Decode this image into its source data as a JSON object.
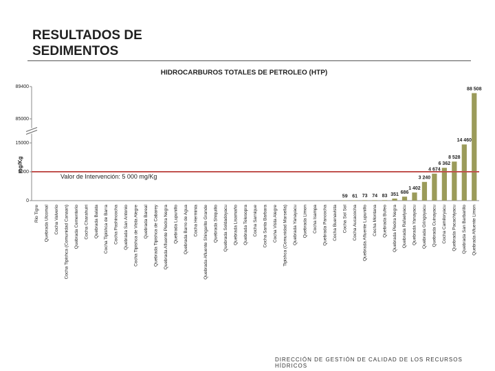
{
  "header": {
    "title_line_1": "RESULTADOS DE",
    "title_line_2": "SEDIMENTOS"
  },
  "footer": "DIRECCIÓN DE GESTIÓN DE CALIDAD DE LOS RECURSOS HÍDRICOS",
  "chart_data": {
    "type": "bar",
    "title": "HIDROCARBUROS TOTALES DE PETROLEO (HTP)",
    "y_label": "mg/Kg",
    "categories": [
      "Rio Tigre",
      "Quebrada Ulcomal",
      "Cocha Valverio",
      "Cocha Tipishca (Comunidad Canaan)",
      "Quebrada Cementerio",
      "Cocha Charahuiri",
      "Quebrada Balata",
      "Cocha Tipishca de Barra",
      "Cocha Pashincocha",
      "Quebrada San Antonio",
      "Cocha Tipishca de Vista Alegre",
      "Quebrada Bareal",
      "Quebrada Tipishca de Cabarey",
      "Quebrada Afluente Piedra Negra",
      "Quebrada Lupunillo",
      "Quebrada Barro de Agua",
      "Cocha Herminia",
      "Quebrada Afluente Shingarito Grande",
      "Quebrada Shiquilio",
      "Quebrada Soldadoyacu",
      "Quebrada Lisamaño",
      "Quebrada Telesopra",
      "Cocha Sarnique",
      "Cocha Santa Barbara",
      "Cocha Vista Alegre",
      "Tipishca (Comunidad Marsella)",
      "Quebrada Yanayacu",
      "Quebrada Limon",
      "Cocha Isampa",
      "Quebrada Pancocha",
      "Cocha Buenavista",
      "Cocha Sol Sol",
      "Cocha Aucacocha",
      "Quebrada Afluente Lupunillo",
      "Cocha Montana",
      "Quebrada Bufeo",
      "Quebrada Piedra Negra",
      "Quebrada Rafaelyacu",
      "Quebrada Yanayacu",
      "Quebrada Gringoyacu",
      "Quebrada Cuinayacu",
      "Cocha Camiloryacu",
      "Quebrada Pacachiyacu",
      "Quebrada San Barbarillo",
      "Quebrada Afluente Limon"
    ],
    "values": [
      0,
      0,
      0,
      0,
      0,
      0,
      0,
      0,
      0,
      0,
      0,
      0,
      0,
      0,
      0,
      0,
      0,
      0,
      0,
      0,
      0,
      0,
      0,
      0,
      0,
      0,
      0,
      0,
      0,
      0,
      0,
      59,
      61,
      73,
      74,
      83,
      351,
      686,
      1402,
      3240,
      4674,
      6362,
      8528,
      14460,
      88508
    ],
    "value_labels": [
      null,
      null,
      null,
      null,
      null,
      null,
      null,
      null,
      null,
      null,
      null,
      null,
      null,
      null,
      null,
      null,
      null,
      null,
      null,
      null,
      null,
      null,
      null,
      null,
      null,
      null,
      null,
      null,
      null,
      null,
      null,
      "59",
      "61",
      "73",
      "74",
      "83",
      "351",
      "686",
      "1 402",
      "3 240",
      "4 674",
      "6 362",
      "8 528",
      "14 460",
      "88 508"
    ],
    "color": "#9b9b5a",
    "ylim": [
      0,
      89400
    ],
    "yticks": [
      0,
      5000,
      15000,
      85000,
      89400
    ],
    "axis_break": true,
    "reference_line": {
      "value": 5000,
      "label": "Valor de Intervención: 5 000 mg/Kg",
      "color": "#c0504d"
    }
  }
}
